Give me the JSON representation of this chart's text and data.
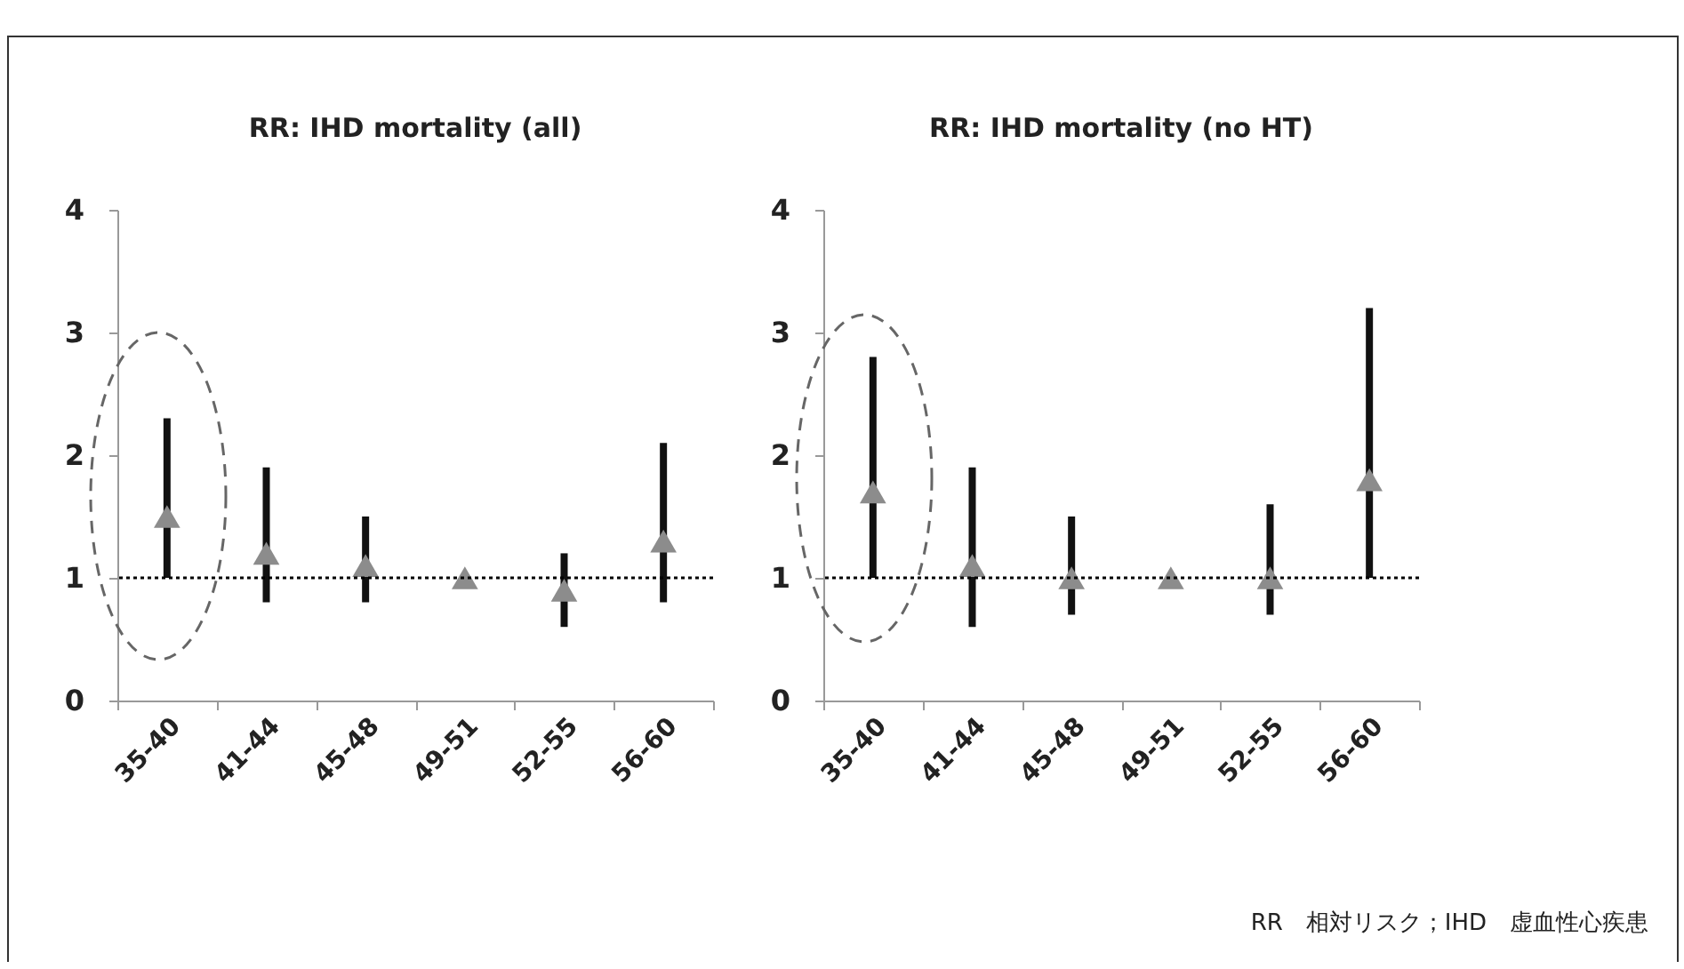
{
  "chart_data": [
    {
      "type": "scatter",
      "title": "RR: IHD mortality (all)",
      "categories": [
        "35-40",
        "41-44",
        "45-48",
        "49-51",
        "52-55",
        "56-60"
      ],
      "series": [
        {
          "color": "#8c8c8c",
          "values": [
            1.5,
            1.2,
            1.1,
            1.0,
            0.9,
            1.3
          ],
          "errors": [
            [
              1.0,
              2.3
            ],
            [
              0.8,
              1.9
            ],
            [
              0.8,
              1.5
            ],
            null,
            [
              0.6,
              1.2
            ],
            [
              0.8,
              2.1
            ]
          ]
        }
      ],
      "marker": "triangle",
      "ylim": [
        0,
        4
      ],
      "yticks": [
        0,
        1,
        2,
        3,
        4
      ],
      "grid": false,
      "ref_lines": [
        {
          "axis": "y",
          "value": 1,
          "color": "#000000",
          "line_style": "dotted"
        }
      ]
    },
    {
      "type": "scatter",
      "title": "RR: IHD mortality (no HT)",
      "categories": [
        "35-40",
        "41-44",
        "45-48",
        "49-51",
        "52-55",
        "56-60"
      ],
      "series": [
        {
          "color": "#8c8c8c",
          "values": [
            1.7,
            1.1,
            1.0,
            1.0,
            1.0,
            1.8
          ],
          "errors": [
            [
              1.0,
              2.8
            ],
            [
              0.6,
              1.9
            ],
            [
              0.7,
              1.5
            ],
            null,
            [
              0.7,
              1.6
            ],
            [
              1.0,
              3.2
            ]
          ]
        }
      ],
      "marker": "triangle",
      "ylim": [
        0,
        4
      ],
      "yticks": [
        0,
        1,
        2,
        3,
        4
      ],
      "grid": false,
      "ref_lines": [
        {
          "axis": "y",
          "value": 1,
          "color": "#000000",
          "line_style": "dotted"
        }
      ],
      "annotations": [
        "RR　相対リスク；IHD　虚血性心疾患"
      ]
    }
  ]
}
